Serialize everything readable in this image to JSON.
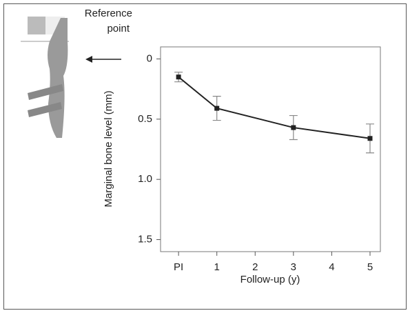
{
  "chart_data": {
    "type": "line",
    "x_label": "Follow-up (y)",
    "y_label": "Marginal bone level (mm)",
    "annotations": [
      "Reference",
      "point"
    ],
    "x": [
      0,
      1,
      3,
      5
    ],
    "series": [
      {
        "color": "#222222",
        "values": [
          0.15,
          0.41,
          0.57,
          0.66
        ],
        "errors": [
          0.04,
          0.1,
          0.1,
          0.12
        ]
      }
    ],
    "xlim": [
      -0.47,
      5.27
    ],
    "xticks": [
      {
        "value": 0,
        "label": "PI"
      },
      1,
      2,
      3,
      4,
      5
    ],
    "ylim": [
      -0.1,
      1.6
    ],
    "y_inverted": true,
    "yticks": [
      0,
      0.5,
      {
        "value": 1.0,
        "label": "1.0"
      },
      1.5
    ]
  }
}
